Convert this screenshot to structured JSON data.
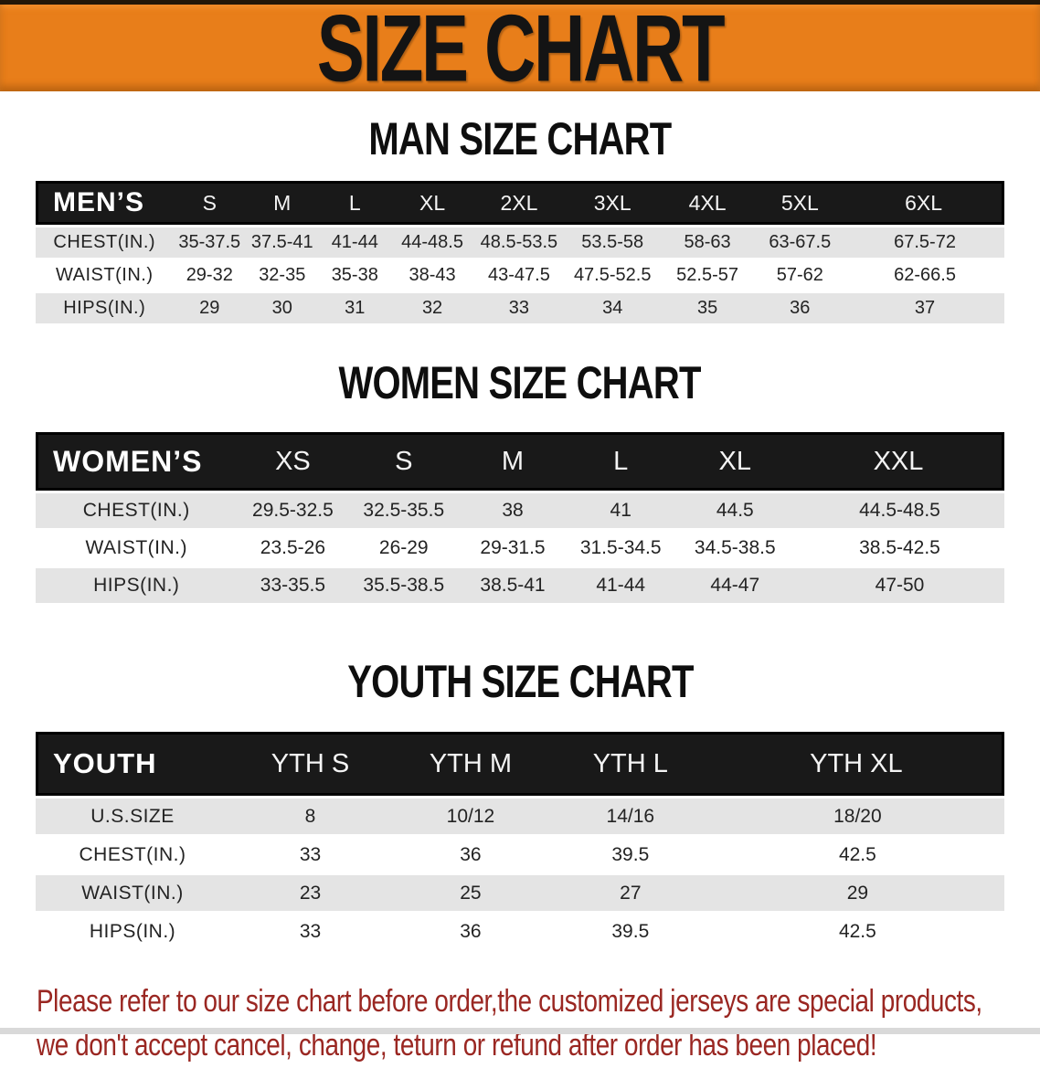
{
  "banner": {
    "title": "SIZE CHART",
    "bg_color": "#e87e1a"
  },
  "sections": [
    {
      "id": "men",
      "heading": "MAN SIZE CHART",
      "corner_label": "MEN’S",
      "columns": [
        "S",
        "M",
        "L",
        "XL",
        "2XL",
        "3XL",
        "4XL",
        "5XL",
        "6XL"
      ],
      "rows": [
        {
          "label": "CHEST(IN.)",
          "values": [
            "35-37.5",
            "37.5-41",
            "41-44",
            "44-48.5",
            "48.5-53.5",
            "53.5-58",
            "58-63",
            "63-67.5",
            "67.5-72"
          ]
        },
        {
          "label": "WAIST(IN.)",
          "values": [
            "29-32",
            "32-35",
            "35-38",
            "38-43",
            "43-47.5",
            "47.5-52.5",
            "52.5-57",
            "57-62",
            "62-66.5"
          ]
        },
        {
          "label": "HIPS(IN.)",
          "values": [
            "29",
            "30",
            "31",
            "32",
            "33",
            "34",
            "35",
            "36",
            "37"
          ]
        }
      ]
    },
    {
      "id": "women",
      "heading": "WOMEN SIZE CHART",
      "corner_label": "WOMEN’S",
      "columns": [
        "XS",
        "S",
        "M",
        "L",
        "XL",
        "XXL"
      ],
      "rows": [
        {
          "label": "CHEST(IN.)",
          "values": [
            "29.5-32.5",
            "32.5-35.5",
            "38",
            "41",
            "44.5",
            "44.5-48.5"
          ]
        },
        {
          "label": "WAIST(IN.)",
          "values": [
            "23.5-26",
            "26-29",
            "29-31.5",
            "31.5-34.5",
            "34.5-38.5",
            "38.5-42.5"
          ]
        },
        {
          "label": "HIPS(IN.)",
          "values": [
            "33-35.5",
            "35.5-38.5",
            "38.5-41",
            "41-44",
            "44-47",
            "47-50"
          ]
        }
      ]
    },
    {
      "id": "youth",
      "heading": "YOUTH SIZE CHART",
      "corner_label": "YOUTH",
      "columns": [
        "YTH S",
        "YTH M",
        "YTH L",
        "YTH XL"
      ],
      "rows": [
        {
          "label": "U.S.SIZE",
          "values": [
            "8",
            "10/12",
            "14/16",
            "18/20"
          ]
        },
        {
          "label": "CHEST(IN.)",
          "values": [
            "33",
            "36",
            "39.5",
            "42.5"
          ]
        },
        {
          "label": "WAIST(IN.)",
          "values": [
            "23",
            "25",
            "27",
            "29"
          ]
        },
        {
          "label": "HIPS(IN.)",
          "values": [
            "33",
            "36",
            "39.5",
            "42.5"
          ]
        }
      ]
    }
  ],
  "footer": {
    "line1": "Please refer to our size chart before order,the customized jerseys are special products,",
    "line2": "we don't accept cancel, change, teturn or refund after order has been placed!",
    "text_color": "#9a2722"
  }
}
